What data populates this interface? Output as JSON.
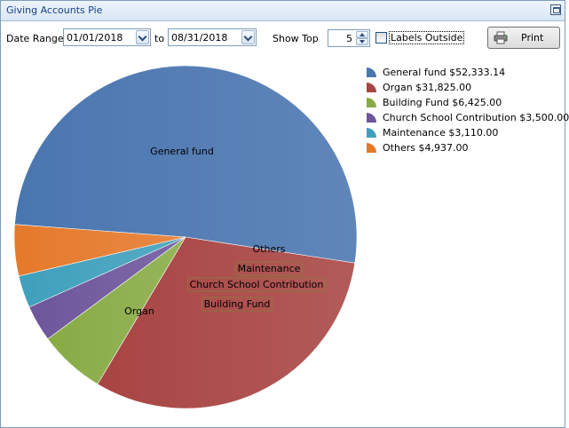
{
  "window": {
    "title": "Giving Accounts Pie"
  },
  "toolbar": {
    "date_range_label": "Date Range",
    "start_date": "01/01/2018",
    "to_label": "to",
    "end_date": "08/31/2018",
    "show_top_label": "Show Top",
    "show_top_value": "5",
    "labels_outside_label": "Labels Outside",
    "labels_outside_checked": false,
    "print_label": "Print"
  },
  "chart_data": {
    "type": "pie",
    "title": "",
    "slices": [
      {
        "label": "General fund",
        "value": 52333.14,
        "legend": "General fund $52,333.14",
        "color": "#4a76b0"
      },
      {
        "label": "Organ",
        "value": 31825.0,
        "legend": "Organ $31,825.00",
        "color": "#a84543"
      },
      {
        "label": "Building Fund",
        "value": 6425.0,
        "legend": "Building Fund $6,425.00",
        "color": "#88ab45"
      },
      {
        "label": "Church School Contribution",
        "value": 3500.0,
        "legend": "Church School Contribution $3,500.00",
        "color": "#6e569b"
      },
      {
        "label": "Maintenance",
        "value": 3110.0,
        "legend": "Maintenance $3,110.00",
        "color": "#3fa0bc"
      },
      {
        "label": "Others",
        "value": 4937.0,
        "legend": "Others $4,937.00",
        "color": "#e5792b"
      }
    ],
    "legend_position": "top-right",
    "labels_outside": false
  }
}
